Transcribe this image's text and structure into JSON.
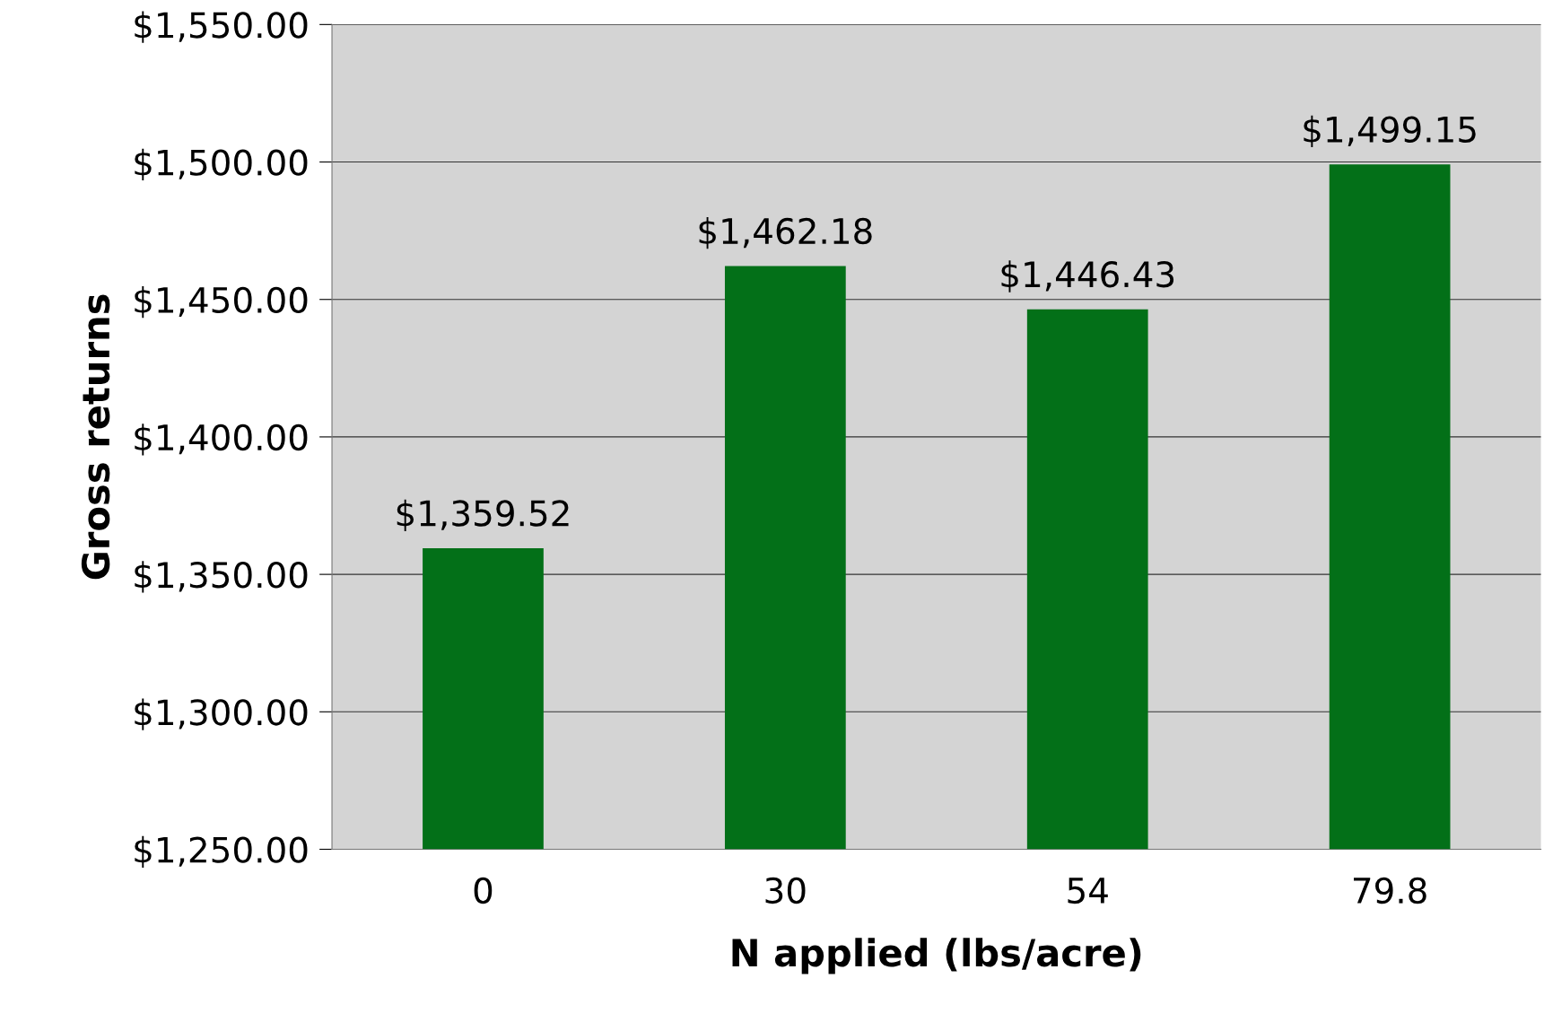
{
  "chart_data": {
    "type": "bar",
    "xlabel": "N applied (lbs/acre)",
    "ylabel": "Gross returns",
    "categories": [
      "0",
      "30",
      "54",
      "79.8"
    ],
    "values": [
      1359.52,
      1462.18,
      1446.43,
      1499.15
    ],
    "value_labels": [
      "$1,359.52",
      "$1,462.18",
      "$1,446.43",
      "$1,499.15"
    ],
    "color": "#037018",
    "ylim": [
      1250,
      1550
    ],
    "yticks": [
      {
        "value": 1250,
        "label": "$1,250.00"
      },
      {
        "value": 1300,
        "label": "$1,300.00"
      },
      {
        "value": 1350,
        "label": "$1,350.00"
      },
      {
        "value": 1400,
        "label": "$1,400.00"
      },
      {
        "value": 1450,
        "label": "$1,450.00"
      },
      {
        "value": 1500,
        "label": "$1,500.00"
      },
      {
        "value": 1550,
        "label": "$1,550.00"
      }
    ],
    "grid": "y"
  }
}
